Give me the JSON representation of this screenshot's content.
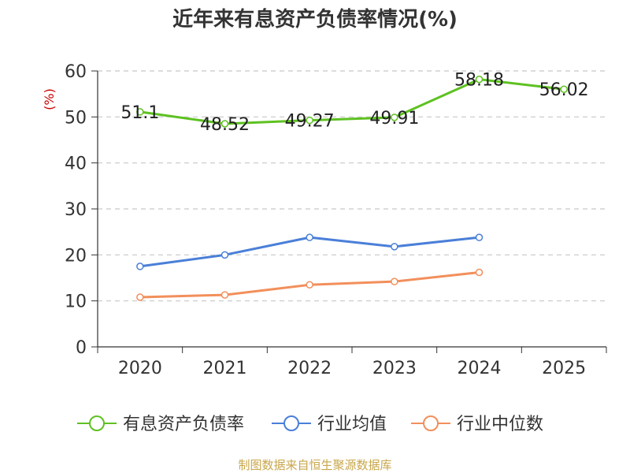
{
  "chart_data": {
    "type": "line",
    "title": "近年来有息资产负债率情况(%)",
    "ylabel": "(%)",
    "categories": [
      "2020",
      "2021",
      "2022",
      "2023",
      "2024",
      "2025"
    ],
    "ylim": [
      0,
      60
    ],
    "yticks": [
      0,
      10,
      20,
      30,
      40,
      50,
      60
    ],
    "grid": true,
    "legend_position": "bottom",
    "series": [
      {
        "name": "有息资产负债率",
        "color": "#5ec121",
        "values": [
          51.1,
          48.52,
          49.27,
          49.91,
          58.18,
          56.02
        ],
        "labels": [
          "51.1",
          "48.52",
          "49.27",
          "49.91",
          "58.18",
          "56.02"
        ]
      },
      {
        "name": "行业均值",
        "color": "#4a7fd8",
        "values": [
          17.5,
          20.0,
          23.8,
          21.8,
          23.8,
          null
        ]
      },
      {
        "name": "行业中位数",
        "color": "#f28f5b",
        "values": [
          10.8,
          11.3,
          13.5,
          14.2,
          16.2,
          null
        ]
      }
    ],
    "source": "制图数据来自恒生聚源数据库"
  }
}
